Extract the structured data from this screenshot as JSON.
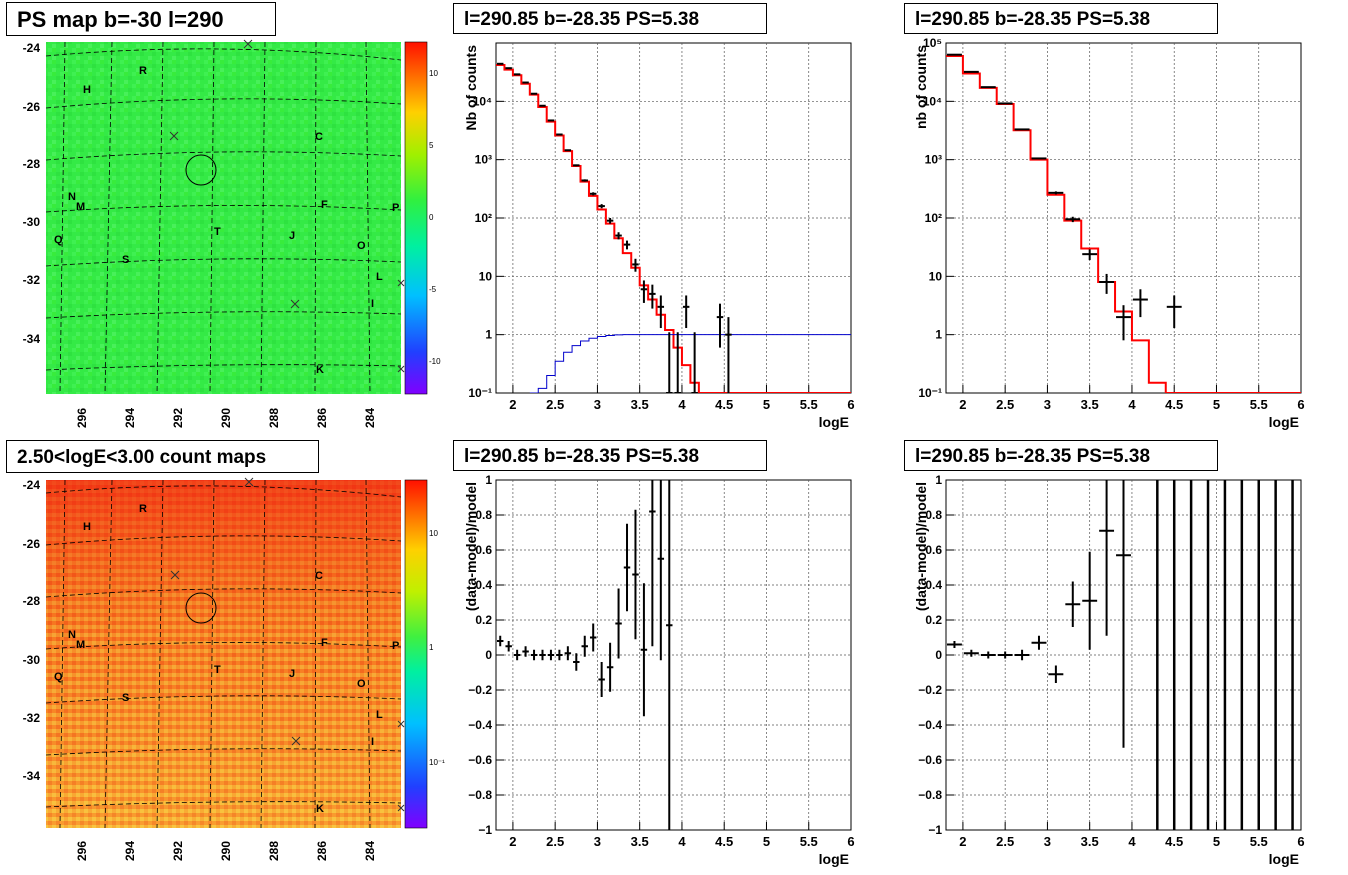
{
  "panels": {
    "map_top": {
      "title": "PS map b=-30 l=290",
      "y_ticks": [
        "-24",
        "-26",
        "-28",
        "-30",
        "-32",
        "-34"
      ],
      "x_ticks": [
        "296",
        "294",
        "292",
        "290",
        "288",
        "286",
        "284"
      ],
      "colorbar_labels": [
        "10",
        "5",
        "0",
        "-5",
        "-10"
      ],
      "letters": [
        "R",
        "H",
        "C",
        "N",
        "M",
        "F",
        "P",
        "Q",
        "T",
        "J",
        "O",
        "S",
        "L",
        "I",
        "K"
      ]
    },
    "map_bottom": {
      "title": "2.50<logE<3.00 count maps",
      "y_ticks": [
        "-24",
        "-26",
        "-28",
        "-30",
        "-32",
        "-34"
      ],
      "x_ticks": [
        "296",
        "294",
        "292",
        "290",
        "288",
        "286",
        "284"
      ],
      "colorbar_labels": [
        "10",
        "1",
        "10⁻¹"
      ],
      "letters": [
        "R",
        "H",
        "C",
        "N",
        "M",
        "F",
        "P",
        "Q",
        "T",
        "J",
        "O",
        "S",
        "L",
        "I",
        "K"
      ]
    }
  },
  "colors": {
    "model": "#ff0000",
    "data": "#000000",
    "exposure": "#0000cc",
    "grid": "#555555"
  },
  "chart_data": [
    {
      "id": "spec_fine",
      "type": "line",
      "title": "l=290.85 b=-28.35 PS=5.38",
      "xlabel": "logE",
      "ylabel": "Nb of counts",
      "xlim": [
        1.8,
        6
      ],
      "ylim": [
        0.1,
        100000
      ],
      "yscale": "log",
      "x_ticks": [
        "2",
        "2.5",
        "3",
        "3.5",
        "4",
        "4.5",
        "5",
        "5.5",
        "6"
      ],
      "y_ticks": [
        "10⁻¹",
        "1",
        "10",
        "10²",
        "10³",
        "10⁴"
      ],
      "grid": true,
      "series": [
        {
          "name": "",
          "kind": "step",
          "x": [
            1.8,
            1.9,
            2.0,
            2.1,
            2.2,
            2.3,
            2.4,
            2.5,
            2.6,
            2.7,
            2.8,
            2.9,
            3.0,
            3.1,
            3.2,
            3.3,
            3.4,
            3.5,
            3.6,
            3.7,
            3.8,
            3.9,
            4.0,
            4.1,
            4.2,
            4.3,
            4.4,
            4.5,
            4.6,
            4.7,
            6.0
          ],
          "y": [
            42000,
            35000,
            28000,
            20000,
            13000,
            8000,
            4500,
            2600,
            1400,
            780,
            420,
            240,
            140,
            80,
            45,
            25,
            14,
            7,
            4,
            2.2,
            1.2,
            0.6,
            0.3,
            0.15,
            0.1,
            0.1,
            0.1,
            0.1,
            0.1,
            0.1,
            0.1
          ]
        },
        {
          "name": "",
          "kind": "step",
          "x": [
            2.2,
            2.3,
            2.4,
            2.5,
            2.6,
            2.7,
            2.8,
            2.9,
            3.0,
            3.1,
            3.2,
            3.3,
            3.4,
            6.0
          ],
          "y": [
            0.1,
            0.12,
            0.2,
            0.35,
            0.5,
            0.65,
            0.78,
            0.87,
            0.93,
            0.97,
            0.99,
            1.0,
            1.0,
            1.0
          ]
        },
        {
          "name": "",
          "kind": "errorbars",
          "x": [
            1.85,
            1.95,
            2.05,
            2.15,
            2.25,
            2.35,
            2.45,
            2.55,
            2.65,
            2.75,
            2.85,
            2.95,
            3.05,
            3.15,
            3.25,
            3.35,
            3.45,
            3.55,
            3.65,
            3.75,
            3.85,
            3.95,
            4.05,
            4.15,
            4.35,
            4.45,
            4.55
          ],
          "y": [
            44000,
            37000,
            29000,
            21000,
            13500,
            8400,
            4700,
            2700,
            1450,
            800,
            440,
            260,
            160,
            90,
            50,
            35,
            16,
            6,
            5,
            3,
            0.1,
            0.1,
            3,
            0.1,
            0,
            2,
            1
          ],
          "yerr_lo": [
            200,
            190,
            170,
            140,
            110,
            90,
            70,
            50,
            38,
            28,
            20,
            16,
            13,
            10,
            7,
            6,
            4,
            2.5,
            2.2,
            1.7,
            0.09,
            0.09,
            1.7,
            0.09,
            0,
            1.4,
            0.9
          ],
          "yerr_hi": [
            200,
            190,
            170,
            140,
            110,
            90,
            70,
            50,
            38,
            28,
            20,
            16,
            13,
            10,
            7,
            6,
            4,
            2.5,
            2.2,
            1.7,
            1.0,
            1.0,
            1.7,
            1.0,
            0,
            1.4,
            1.0
          ]
        }
      ]
    },
    {
      "id": "spec_coarse",
      "type": "line",
      "title": "l=290.85 b=-28.35 PS=5.38",
      "xlabel": "logE",
      "ylabel": "nb of counts",
      "xlim": [
        1.8,
        6
      ],
      "ylim": [
        0.1,
        100000
      ],
      "yscale": "log",
      "x_ticks": [
        "2",
        "2.5",
        "3",
        "3.5",
        "4",
        "4.5",
        "5",
        "5.5",
        "6"
      ],
      "y_ticks": [
        "10⁻¹",
        "1",
        "10",
        "10²",
        "10³",
        "10⁴",
        "10⁵"
      ],
      "grid": true,
      "series": [
        {
          "name": "",
          "kind": "step",
          "x": [
            1.8,
            2.0,
            2.2,
            2.4,
            2.6,
            2.8,
            3.0,
            3.2,
            3.4,
            3.6,
            3.8,
            4.0,
            4.2,
            4.4,
            6.0
          ],
          "y": [
            60000,
            30000,
            17000,
            9000,
            3200,
            1000,
            250,
            90,
            30,
            8,
            2.5,
            0.8,
            0.15,
            0.1,
            0.1
          ]
        },
        {
          "name": "",
          "kind": "errorbars",
          "x": [
            1.9,
            2.1,
            2.3,
            2.5,
            2.7,
            2.9,
            3.1,
            3.3,
            3.5,
            3.7,
            3.9,
            4.1,
            4.5
          ],
          "y": [
            63000,
            32000,
            17500,
            9200,
            3300,
            1050,
            270,
            95,
            24,
            8,
            2,
            4,
            3
          ],
          "yerr_lo": [
            250,
            180,
            130,
            95,
            57,
            32,
            16,
            10,
            5,
            3,
            1.2,
            2,
            1.7
          ],
          "yerr_hi": [
            250,
            180,
            130,
            95,
            57,
            32,
            16,
            10,
            5,
            3,
            1.2,
            2,
            1.7
          ]
        }
      ]
    },
    {
      "id": "resid_fine",
      "type": "scatter",
      "title": "l=290.85 b=-28.35 PS=5.38",
      "xlabel": "logE",
      "ylabel": "(data-model)/model",
      "xlim": [
        1.8,
        6
      ],
      "ylim": [
        -1,
        1
      ],
      "x_ticks": [
        "2",
        "2.5",
        "3",
        "3.5",
        "4",
        "4.5",
        "5",
        "5.5",
        "6"
      ],
      "y_ticks": [
        "−1",
        "−0.8",
        "−0.6",
        "−0.4",
        "−0.2",
        "0",
        "0.2",
        "0.4",
        "0.6",
        "0.8",
        "1"
      ],
      "grid": true,
      "series": [
        {
          "name": "",
          "kind": "errorbars",
          "x": [
            1.85,
            1.95,
            2.05,
            2.15,
            2.25,
            2.35,
            2.45,
            2.55,
            2.65,
            2.75,
            2.85,
            2.95,
            3.05,
            3.15,
            3.25,
            3.35,
            3.45,
            3.55,
            3.65,
            3.75,
            3.85
          ],
          "y": [
            0.08,
            0.05,
            0.0,
            0.02,
            0.0,
            0.0,
            0.0,
            0.0,
            0.01,
            -0.04,
            0.05,
            0.1,
            -0.14,
            -0.07,
            0.18,
            0.5,
            0.46,
            0.03,
            0.82,
            0.55,
            0.17
          ],
          "yerr": [
            0.03,
            0.03,
            0.03,
            0.03,
            0.03,
            0.03,
            0.03,
            0.03,
            0.04,
            0.05,
            0.06,
            0.08,
            0.1,
            0.14,
            0.2,
            0.25,
            0.37,
            0.38,
            0.77,
            0.58,
            1.2
          ]
        }
      ]
    },
    {
      "id": "resid_coarse",
      "type": "scatter",
      "title": "l=290.85 b=-28.35 PS=5.38",
      "xlabel": "logE",
      "ylabel": "(data-model)/model",
      "xlim": [
        1.8,
        6
      ],
      "ylim": [
        -1,
        1
      ],
      "x_ticks": [
        "2",
        "2.5",
        "3",
        "3.5",
        "4",
        "4.5",
        "5",
        "5.5",
        "6"
      ],
      "y_ticks": [
        "−1",
        "−0.8",
        "−0.6",
        "−0.4",
        "−0.2",
        "0",
        "0.2",
        "0.4",
        "0.6",
        "0.8",
        "1"
      ],
      "grid": true,
      "series": [
        {
          "name": "",
          "kind": "errorbars",
          "x": [
            1.9,
            2.1,
            2.3,
            2.5,
            2.7,
            2.9,
            3.1,
            3.3,
            3.5,
            3.7,
            3.9
          ],
          "y": [
            0.06,
            0.01,
            0.0,
            0.0,
            0.0,
            0.07,
            -0.11,
            0.29,
            0.31,
            0.71,
            0.57
          ],
          "yerr": [
            0.02,
            0.02,
            0.02,
            0.02,
            0.03,
            0.04,
            0.05,
            0.13,
            0.28,
            0.6,
            1.1
          ]
        },
        {
          "name": "",
          "kind": "vlines",
          "x": [
            4.3,
            4.5,
            4.7,
            4.9,
            5.1,
            5.3,
            5.5,
            5.7,
            5.9
          ]
        }
      ]
    }
  ]
}
